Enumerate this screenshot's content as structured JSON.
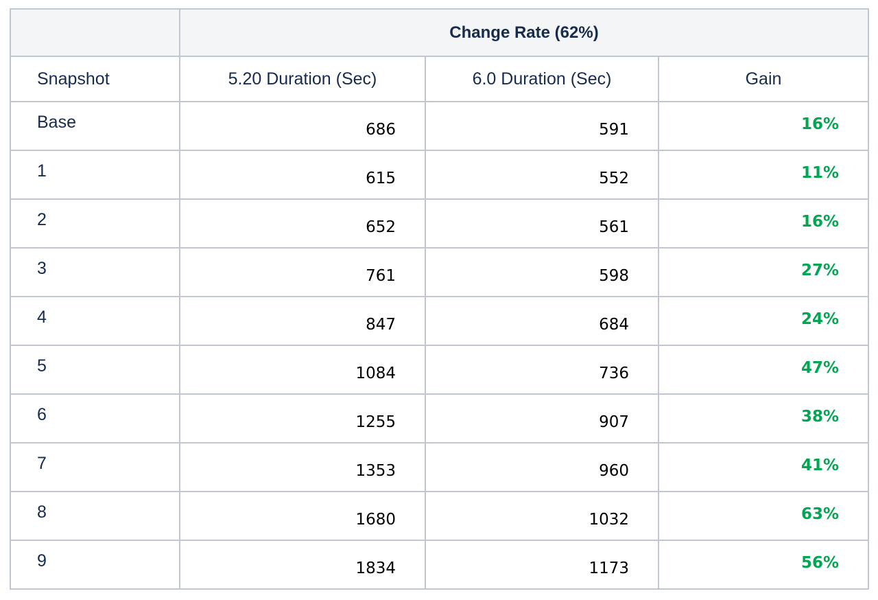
{
  "table": {
    "group_header": "Change Rate (62%)",
    "columns": [
      "Snapshot",
      "5.20 Duration (Sec)",
      "6.0 Duration (Sec)",
      "Gain"
    ],
    "gain_color": "#00a651",
    "rows": [
      {
        "snapshot": "Base",
        "d520": "686",
        "d60": "591",
        "gain": "16%"
      },
      {
        "snapshot": "1",
        "d520": "615",
        "d60": "552",
        "gain": "11%"
      },
      {
        "snapshot": "2",
        "d520": "652",
        "d60": "561",
        "gain": "16%"
      },
      {
        "snapshot": "3",
        "d520": "761",
        "d60": "598",
        "gain": "27%"
      },
      {
        "snapshot": "4",
        "d520": "847",
        "d60": "684",
        "gain": "24%"
      },
      {
        "snapshot": "5",
        "d520": "1084",
        "d60": "736",
        "gain": "47%"
      },
      {
        "snapshot": "6",
        "d520": "1255",
        "d60": "907",
        "gain": "38%"
      },
      {
        "snapshot": "7",
        "d520": "1353",
        "d60": "960",
        "gain": "41%"
      },
      {
        "snapshot": "8",
        "d520": "1680",
        "d60": "1032",
        "gain": "63%"
      },
      {
        "snapshot": "9",
        "d520": "1834",
        "d60": "1173",
        "gain": "56%"
      }
    ]
  }
}
